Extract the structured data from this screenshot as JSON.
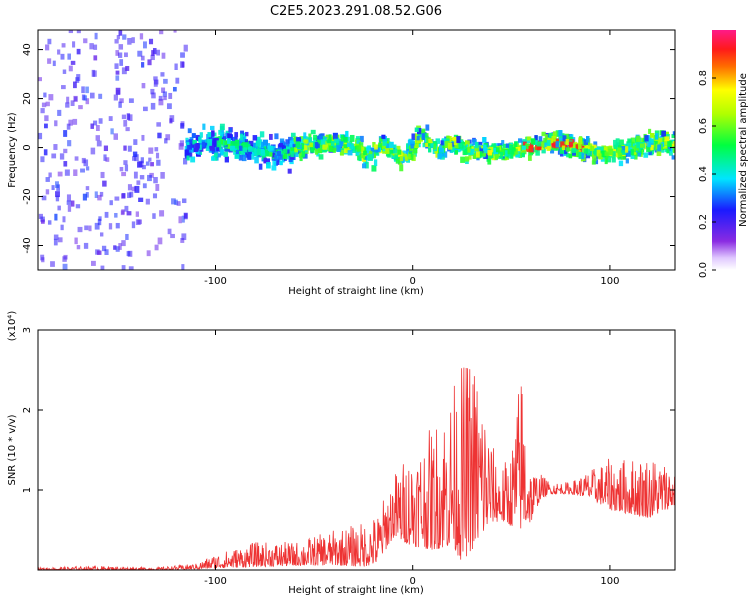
{
  "title": "C2E5.2023.291.08.52.G06",
  "chart_data": [
    {
      "type": "heatmap",
      "title": "C2E5.2023.291.08.52.G06",
      "xlabel": "Height of straight line (km)",
      "ylabel": "Frequency (Hz)",
      "xlim": [
        -190,
        133
      ],
      "ylim": [
        -50,
        48
      ],
      "xticks": [
        -100,
        0,
        100
      ],
      "yticks": [
        -40,
        -20,
        0,
        20,
        40
      ],
      "colorbar": {
        "label": "Normalized spectral amplitude",
        "range": [
          0,
          1
        ],
        "ticks": [
          "0.0",
          "0.2",
          "0.4",
          "0.6",
          "0.8"
        ]
      },
      "grid": false
    },
    {
      "type": "line",
      "xlabel": "Height of straight line (km)",
      "ylabel": "SNR (10 * v/v)",
      "multiplier": "(x10⁴)",
      "xlim": [
        -190,
        133
      ],
      "ylim": [
        0,
        3
      ],
      "xticks": [
        -100,
        0,
        100
      ],
      "yticks": [
        1,
        2,
        3
      ],
      "series_color": "#ee3333",
      "envelope": {
        "x": [
          -190,
          -160,
          -130,
          -110,
          -100,
          -80,
          -60,
          -40,
          -25,
          -18,
          -10,
          0,
          10,
          20,
          25,
          30,
          35,
          40,
          45,
          50,
          55,
          60,
          65,
          70,
          80,
          90,
          100,
          110,
          120,
          133
        ],
        "low": [
          0.0,
          0.0,
          0.0,
          0.01,
          0.02,
          0.04,
          0.05,
          0.06,
          0.04,
          0.08,
          0.4,
          0.3,
          0.25,
          0.3,
          0.1,
          0.25,
          0.4,
          0.6,
          0.6,
          0.55,
          0.5,
          0.6,
          0.9,
          0.95,
          0.95,
          0.9,
          0.75,
          0.7,
          0.65,
          0.8
        ],
        "high": [
          0.03,
          0.05,
          0.03,
          0.08,
          0.2,
          0.35,
          0.35,
          0.5,
          0.6,
          0.7,
          1.2,
          1.55,
          1.8,
          2.3,
          2.6,
          2.75,
          2.4,
          1.6,
          1.3,
          1.5,
          2.6,
          1.3,
          1.2,
          1.1,
          1.1,
          1.25,
          1.4,
          1.4,
          1.45,
          1.3
        ]
      }
    }
  ]
}
